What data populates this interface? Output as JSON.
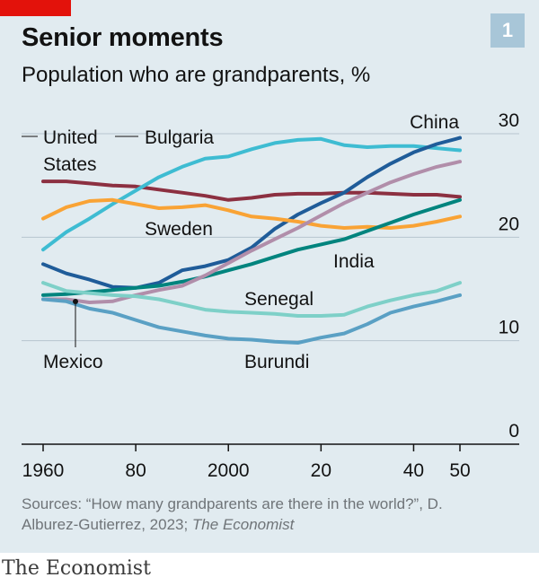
{
  "header": {
    "title": "Senior moments",
    "subtitle": "Population who are grandparents, %",
    "badge": "1"
  },
  "footer": {
    "source_prefix": "Sources: “How many grandparents are there in the world?”, D. Alburez-Gutierrez, 2023; ",
    "source_pub": "The Economist",
    "brand": "The Economist"
  },
  "colors": {
    "panel_bg": "#e1ebf0",
    "accent_red": "#e3120b",
    "badge": "#a8c6d8"
  },
  "chart_data": {
    "type": "line",
    "title": "",
    "xlabel": "",
    "ylabel": "",
    "xlim": [
      1960,
      2050
    ],
    "ylim": [
      0,
      30
    ],
    "y_axis_position": "right",
    "grid": true,
    "x_ticks": [
      {
        "value": 1960,
        "label": "1960"
      },
      {
        "value": 1980,
        "label": "80"
      },
      {
        "value": 2000,
        "label": "2000"
      },
      {
        "value": 2020,
        "label": "20"
      },
      {
        "value": 2040,
        "label": "40"
      },
      {
        "value": 2050,
        "label": "50"
      }
    ],
    "y_ticks": [
      {
        "value": 0,
        "label": "0"
      },
      {
        "value": 10,
        "label": "10"
      },
      {
        "value": 20,
        "label": "20"
      },
      {
        "value": 30,
        "label": "30"
      }
    ],
    "series": [
      {
        "name": "United States",
        "color": "#8c3041",
        "x": [
          1960,
          1965,
          1970,
          1975,
          1980,
          1985,
          1990,
          1995,
          2000,
          2005,
          2010,
          2015,
          2020,
          2025,
          2030,
          2035,
          2040,
          2045,
          2050
        ],
        "y": [
          25.4,
          25.4,
          25.2,
          25.0,
          24.9,
          24.6,
          24.3,
          24.0,
          23.6,
          23.8,
          24.1,
          24.2,
          24.2,
          24.3,
          24.3,
          24.2,
          24.1,
          24.1,
          23.9
        ]
      },
      {
        "name": "Bulgaria",
        "color": "#3ebcd2",
        "x": [
          1960,
          1965,
          1970,
          1975,
          1980,
          1985,
          1990,
          1995,
          2000,
          2005,
          2010,
          2015,
          2020,
          2025,
          2030,
          2035,
          2040,
          2045,
          2050
        ],
        "y": [
          18.8,
          20.5,
          21.8,
          23.2,
          24.5,
          25.8,
          26.8,
          27.6,
          27.8,
          28.5,
          29.1,
          29.4,
          29.5,
          28.9,
          28.7,
          28.8,
          28.8,
          28.6,
          28.4
        ]
      },
      {
        "name": "China",
        "color": "#1f5c99",
        "x": [
          1960,
          1965,
          1970,
          1975,
          1980,
          1985,
          1990,
          1995,
          2000,
          2005,
          2010,
          2015,
          2020,
          2025,
          2030,
          2035,
          2040,
          2045,
          2050
        ],
        "y": [
          17.4,
          16.5,
          15.9,
          15.2,
          15.1,
          15.6,
          16.8,
          17.2,
          17.8,
          19.0,
          20.8,
          22.2,
          23.3,
          24.3,
          25.8,
          27.1,
          28.2,
          29.0,
          29.6
        ]
      },
      {
        "name": "Sweden",
        "color": "#f9a335",
        "x": [
          1960,
          1965,
          1970,
          1975,
          1980,
          1985,
          1990,
          1995,
          2000,
          2005,
          2010,
          2015,
          2020,
          2025,
          2030,
          2035,
          2040,
          2045,
          2050
        ],
        "y": [
          21.8,
          22.9,
          23.5,
          23.6,
          23.2,
          22.8,
          22.9,
          23.1,
          22.6,
          22.0,
          21.8,
          21.5,
          21.1,
          20.9,
          21.0,
          20.9,
          21.1,
          21.5,
          22.0
        ]
      },
      {
        "name": "India",
        "color": "#00847e",
        "x": [
          1960,
          1965,
          1970,
          1975,
          1980,
          1985,
          1990,
          1995,
          2000,
          2005,
          2010,
          2015,
          2020,
          2025,
          2030,
          2035,
          2040,
          2045,
          2050
        ],
        "y": [
          14.4,
          14.5,
          14.7,
          14.9,
          15.1,
          15.3,
          15.7,
          16.2,
          16.8,
          17.4,
          18.1,
          18.8,
          19.3,
          19.8,
          20.6,
          21.4,
          22.2,
          22.9,
          23.6
        ]
      },
      {
        "name": "Mexico",
        "color": "#b18eaa",
        "x": [
          1960,
          1965,
          1970,
          1975,
          1980,
          1985,
          1990,
          1995,
          2000,
          2005,
          2010,
          2015,
          2020,
          2025,
          2030,
          2035,
          2040,
          2045,
          2050
        ],
        "y": [
          14.0,
          14.0,
          13.7,
          13.8,
          14.4,
          14.9,
          15.3,
          16.3,
          17.5,
          18.7,
          19.8,
          20.9,
          22.1,
          23.3,
          24.3,
          25.3,
          26.1,
          26.8,
          27.3
        ]
      },
      {
        "name": "Senegal",
        "color": "#7ed0c8",
        "x": [
          1960,
          1965,
          1970,
          1975,
          1980,
          1985,
          1990,
          1995,
          2000,
          2005,
          2010,
          2015,
          2020,
          2025,
          2030,
          2035,
          2040,
          2045,
          2050
        ],
        "y": [
          15.6,
          14.8,
          14.6,
          14.4,
          14.3,
          14.0,
          13.5,
          13.0,
          12.8,
          12.7,
          12.6,
          12.4,
          12.4,
          12.5,
          13.3,
          13.9,
          14.4,
          14.8,
          15.6
        ]
      },
      {
        "name": "Burundi",
        "color": "#5aa0c4",
        "x": [
          1960,
          1965,
          1970,
          1975,
          1980,
          1985,
          1990,
          1995,
          2000,
          2005,
          2010,
          2015,
          2020,
          2025,
          2030,
          2035,
          2040,
          2045,
          2050
        ],
        "y": [
          14.0,
          13.8,
          13.1,
          12.7,
          12.0,
          11.3,
          10.9,
          10.5,
          10.2,
          10.1,
          9.9,
          9.8,
          10.3,
          10.7,
          11.6,
          12.7,
          13.3,
          13.8,
          14.4
        ]
      }
    ],
    "labels": [
      {
        "text": "United",
        "series": "United States"
      },
      {
        "text": "States",
        "series": "United States"
      },
      {
        "text": "Bulgaria",
        "series": "Bulgaria"
      },
      {
        "text": "China",
        "series": "China"
      },
      {
        "text": "Sweden",
        "series": "Sweden"
      },
      {
        "text": "India",
        "series": "India"
      },
      {
        "text": "Senegal",
        "series": "Senegal"
      },
      {
        "text": "Mexico",
        "series": "Mexico"
      },
      {
        "text": "Burundi",
        "series": "Burundi"
      }
    ]
  }
}
